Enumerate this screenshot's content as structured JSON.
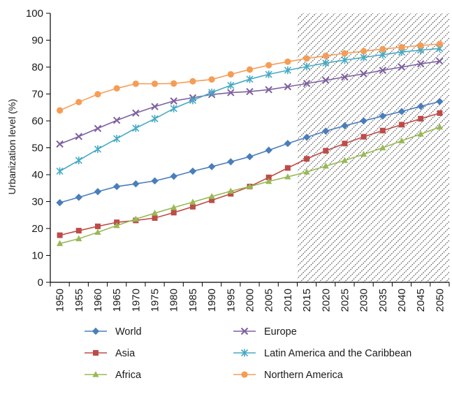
{
  "chart_data": {
    "type": "line",
    "ylabel": "Urbanization level (%)",
    "xlabel": "",
    "ylim": [
      0,
      100
    ],
    "yticks": [
      0,
      10,
      20,
      30,
      40,
      50,
      60,
      70,
      80,
      90,
      100
    ],
    "x": [
      1950,
      1955,
      1960,
      1965,
      1970,
      1975,
      1980,
      1985,
      1990,
      1995,
      2000,
      2005,
      2010,
      2015,
      2020,
      2025,
      2030,
      2035,
      2040,
      2045,
      2050
    ],
    "projection_start": 2012.5,
    "grid": false,
    "legend_position": "bottom",
    "series": [
      {
        "name": "World",
        "color": "#4a7ebb",
        "marker": "diamond",
        "values": [
          29.6,
          31.6,
          33.7,
          35.6,
          36.6,
          37.7,
          39.4,
          41.3,
          43.0,
          44.8,
          46.7,
          49.1,
          51.6,
          53.9,
          56.2,
          58.2,
          60.0,
          61.8,
          63.5,
          65.4,
          67.2
        ]
      },
      {
        "name": "Asia",
        "color": "#be4b48",
        "marker": "square",
        "values": [
          17.5,
          19.2,
          20.8,
          22.3,
          23.0,
          23.9,
          25.9,
          28.1,
          30.5,
          32.9,
          35.6,
          39.0,
          42.5,
          45.9,
          48.9,
          51.6,
          54.1,
          56.4,
          58.6,
          60.8,
          62.9
        ]
      },
      {
        "name": "Africa",
        "color": "#98b954",
        "marker": "triangle",
        "values": [
          14.4,
          16.2,
          18.6,
          21.1,
          23.5,
          25.7,
          27.8,
          29.8,
          31.9,
          33.9,
          35.6,
          37.5,
          39.2,
          41.0,
          43.2,
          45.3,
          47.6,
          50.0,
          52.6,
          55.1,
          57.7
        ]
      },
      {
        "name": "Europe",
        "color": "#7d60a0",
        "marker": "x",
        "values": [
          51.4,
          54.2,
          57.2,
          60.2,
          62.9,
          65.3,
          67.4,
          68.6,
          69.8,
          70.5,
          70.9,
          71.6,
          72.7,
          73.9,
          75.1,
          76.3,
          77.5,
          78.8,
          80.0,
          81.2,
          82.2
        ]
      },
      {
        "name": "Latin America and the Caribbean",
        "color": "#46aac4",
        "marker": "star",
        "values": [
          41.3,
          45.3,
          49.5,
          53.4,
          57.3,
          60.8,
          64.6,
          67.6,
          70.6,
          73.2,
          75.5,
          77.3,
          78.8,
          80.2,
          81.5,
          82.6,
          83.6,
          84.6,
          85.6,
          86.3,
          86.9
        ]
      },
      {
        "name": "Northern America",
        "color": "#f59d56",
        "marker": "circle",
        "values": [
          63.9,
          67.0,
          69.9,
          72.1,
          73.8,
          73.8,
          73.9,
          74.7,
          75.4,
          77.3,
          79.1,
          80.7,
          82.0,
          83.2,
          84.2,
          85.1,
          85.9,
          86.7,
          87.4,
          88.0,
          88.6
        ]
      }
    ]
  }
}
